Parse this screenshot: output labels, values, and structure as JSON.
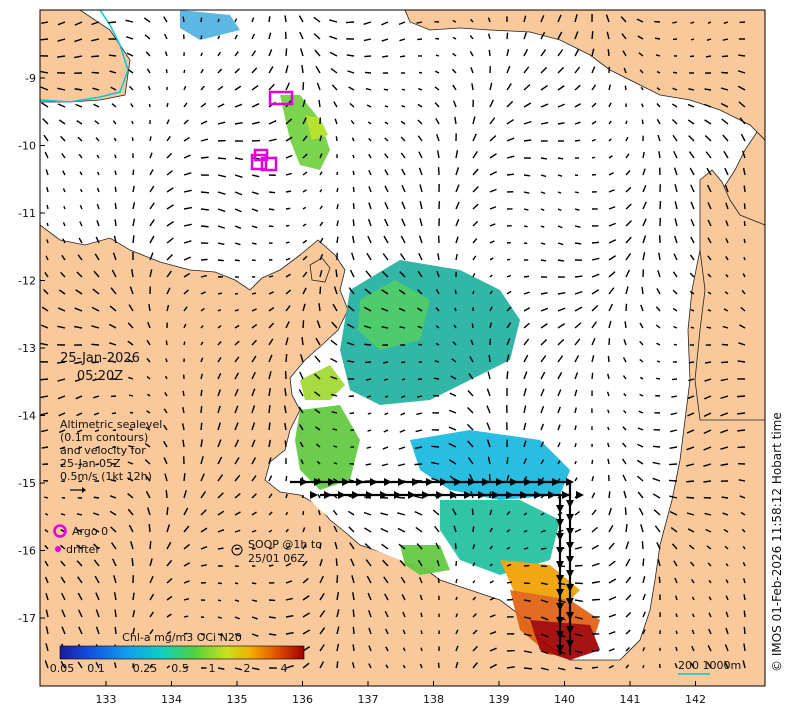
{
  "map": {
    "date_line1": "25-Jan-2026",
    "date_line2": "05:20Z",
    "legend_text": [
      "Altimetric sealevel",
      "(0.1m contours)",
      "and velocity for",
      "25-Jan 05Z",
      "0.5m/s (1kt 12h)"
    ],
    "argo_label": "Argo 0",
    "drifter_label": "drifter",
    "soop_label_line1": "SOOP @1h to",
    "soop_label_line2": "25/01 06Z",
    "scale_label": "200  1000m",
    "credit": "© IMOS 01-Feb-2026 11:58:12 Hobart time",
    "colorbar": {
      "title": "Chl-a mg/m3 OCi N20",
      "tick_labels": [
        "0.05",
        "0.1",
        "0.25",
        "0.5",
        "1",
        "2",
        "4"
      ]
    },
    "lon_ticks": [
      "133",
      "134",
      "135",
      "136",
      "137",
      "138",
      "139",
      "140",
      "141",
      "142"
    ],
    "lat_ticks": [
      "-9",
      "-10",
      "-11",
      "-12",
      "-13",
      "-14",
      "-15",
      "-16",
      "-17"
    ],
    "colors": {
      "land": "#f9c89b",
      "sea": "#ffffff",
      "argo": "#e000e0",
      "soop": "#000000",
      "contour": "#00c8d8"
    }
  }
}
